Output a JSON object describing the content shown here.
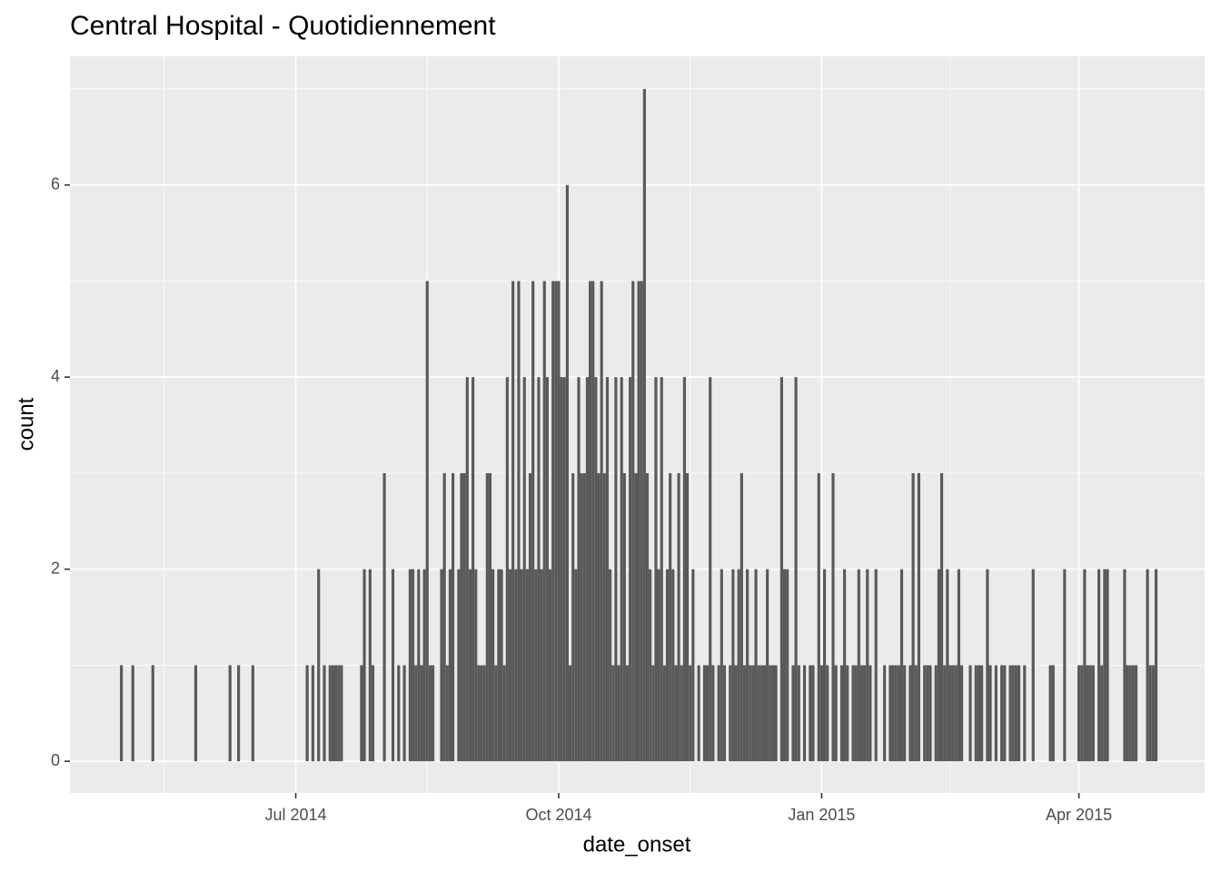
{
  "chart_data": {
    "type": "bar",
    "title": "Central Hospital - Quotidiennement",
    "x_label": "date_onset",
    "y_label": "count",
    "color": "#595959",
    "grid": true,
    "xlim": [
      "2014-04-13",
      "2015-05-15"
    ],
    "xticks": [
      {
        "value": "2014-07-01",
        "label": "Jul 2014"
      },
      {
        "value": "2014-10-01",
        "label": "Oct 2014"
      },
      {
        "value": "2015-01-01",
        "label": "Jan 2015"
      },
      {
        "value": "2015-04-01",
        "label": "Apr 2015"
      }
    ],
    "x_minor_ticks": [
      "2014-05-16",
      "2014-08-16",
      "2014-11-16",
      "2015-02-15"
    ],
    "ylim": [
      -0.33,
      7.34
    ],
    "yticks": [
      0,
      2,
      4,
      6
    ],
    "y_minor_ticks": [
      1,
      3,
      5,
      7
    ],
    "x": [
      "2014-05-01",
      "2014-05-05",
      "2014-05-12",
      "2014-05-27",
      "2014-06-08",
      "2014-06-11",
      "2014-06-16",
      "2014-07-05",
      "2014-07-07",
      "2014-07-09",
      "2014-07-11",
      "2014-07-13",
      "2014-07-14",
      "2014-07-15",
      "2014-07-16",
      "2014-07-17",
      "2014-07-24",
      "2014-07-25",
      "2014-07-27",
      "2014-07-28",
      "2014-08-01",
      "2014-08-04",
      "2014-08-06",
      "2014-08-08",
      "2014-08-10",
      "2014-08-11",
      "2014-08-12",
      "2014-08-13",
      "2014-08-14",
      "2014-08-15",
      "2014-08-16",
      "2014-08-17",
      "2014-08-18",
      "2014-08-21",
      "2014-08-22",
      "2014-08-23",
      "2014-08-24",
      "2014-08-25",
      "2014-08-27",
      "2014-08-28",
      "2014-08-29",
      "2014-08-30",
      "2014-08-31",
      "2014-09-01",
      "2014-09-02",
      "2014-09-03",
      "2014-09-04",
      "2014-09-05",
      "2014-09-06",
      "2014-09-07",
      "2014-09-08",
      "2014-09-09",
      "2014-09-10",
      "2014-09-11",
      "2014-09-12",
      "2014-09-13",
      "2014-09-14",
      "2014-09-15",
      "2014-09-16",
      "2014-09-17",
      "2014-09-18",
      "2014-09-19",
      "2014-09-20",
      "2014-09-21",
      "2014-09-22",
      "2014-09-23",
      "2014-09-24",
      "2014-09-25",
      "2014-09-26",
      "2014-09-27",
      "2014-09-28",
      "2014-09-29",
      "2014-09-30",
      "2014-10-01",
      "2014-10-02",
      "2014-10-03",
      "2014-10-04",
      "2014-10-05",
      "2014-10-06",
      "2014-10-07",
      "2014-10-08",
      "2014-10-09",
      "2014-10-10",
      "2014-10-11",
      "2014-10-12",
      "2014-10-13",
      "2014-10-14",
      "2014-10-15",
      "2014-10-16",
      "2014-10-17",
      "2014-10-18",
      "2014-10-19",
      "2014-10-20",
      "2014-10-21",
      "2014-10-22",
      "2014-10-23",
      "2014-10-24",
      "2014-10-25",
      "2014-10-26",
      "2014-10-27",
      "2014-10-28",
      "2014-10-29",
      "2014-10-30",
      "2014-10-31",
      "2014-11-01",
      "2014-11-02",
      "2014-11-03",
      "2014-11-04",
      "2014-11-05",
      "2014-11-06",
      "2014-11-07",
      "2014-11-08",
      "2014-11-09",
      "2014-11-10",
      "2014-11-11",
      "2014-11-12",
      "2014-11-13",
      "2014-11-14",
      "2014-11-15",
      "2014-11-16",
      "2014-11-17",
      "2014-11-18",
      "2014-11-19",
      "2014-11-20",
      "2014-11-21",
      "2014-11-22",
      "2014-11-23",
      "2014-11-24",
      "2014-11-25",
      "2014-11-26",
      "2014-11-27",
      "2014-11-28",
      "2014-11-29",
      "2014-11-30",
      "2014-12-01",
      "2014-12-02",
      "2014-12-03",
      "2014-12-04",
      "2014-12-05",
      "2014-12-06",
      "2014-12-07",
      "2014-12-08",
      "2014-12-09",
      "2014-12-10",
      "2014-12-11",
      "2014-12-12",
      "2014-12-13",
      "2014-12-14",
      "2014-12-15",
      "2014-12-16",
      "2014-12-17",
      "2014-12-18",
      "2014-12-19",
      "2014-12-20",
      "2014-12-21",
      "2014-12-22",
      "2014-12-23",
      "2014-12-24",
      "2014-12-25",
      "2014-12-26",
      "2014-12-27",
      "2014-12-28",
      "2014-12-29",
      "2014-12-30",
      "2014-12-31",
      "2015-01-01",
      "2015-01-02",
      "2015-01-03",
      "2015-01-04",
      "2015-01-05",
      "2015-01-06",
      "2015-01-07",
      "2015-01-08",
      "2015-01-09",
      "2015-01-10",
      "2015-01-11",
      "2015-01-12",
      "2015-01-13",
      "2015-01-14",
      "2015-01-15",
      "2015-01-16",
      "2015-01-17",
      "2015-01-18",
      "2015-01-19",
      "2015-01-20",
      "2015-01-21",
      "2015-01-22",
      "2015-01-23",
      "2015-01-24",
      "2015-01-25",
      "2015-01-26",
      "2015-01-27",
      "2015-01-28",
      "2015-01-29",
      "2015-01-30",
      "2015-01-31",
      "2015-02-01",
      "2015-02-02",
      "2015-02-03",
      "2015-02-04",
      "2015-02-05",
      "2015-02-06",
      "2015-02-07",
      "2015-02-08",
      "2015-02-09",
      "2015-02-10",
      "2015-02-11",
      "2015-02-12",
      "2015-02-13",
      "2015-02-14",
      "2015-02-15",
      "2015-02-16",
      "2015-02-17",
      "2015-02-18",
      "2015-02-19",
      "2015-02-20",
      "2015-02-21",
      "2015-02-22",
      "2015-02-23",
      "2015-02-24",
      "2015-02-25",
      "2015-02-26",
      "2015-02-27",
      "2015-02-28",
      "2015-03-01",
      "2015-03-02",
      "2015-03-03",
      "2015-03-04",
      "2015-03-05",
      "2015-03-06",
      "2015-03-07",
      "2015-03-08",
      "2015-03-09",
      "2015-03-10",
      "2015-03-11",
      "2015-03-12",
      "2015-03-13",
      "2015-03-14",
      "2015-03-15",
      "2015-03-16",
      "2015-03-17",
      "2015-03-18",
      "2015-03-19",
      "2015-03-20",
      "2015-03-21",
      "2015-03-22",
      "2015-03-23",
      "2015-03-24",
      "2015-03-25",
      "2015-03-26",
      "2015-03-27",
      "2015-03-28",
      "2015-03-29",
      "2015-03-30",
      "2015-03-31",
      "2015-04-01",
      "2015-04-02",
      "2015-04-03",
      "2015-04-04",
      "2015-04-05",
      "2015-04-06",
      "2015-04-07",
      "2015-04-08",
      "2015-04-09",
      "2015-04-10",
      "2015-04-11",
      "2015-04-12",
      "2015-04-13",
      "2015-04-14",
      "2015-04-15",
      "2015-04-16",
      "2015-04-17",
      "2015-04-18",
      "2015-04-19",
      "2015-04-20",
      "2015-04-21",
      "2015-04-22",
      "2015-04-23",
      "2015-04-24",
      "2015-04-25",
      "2015-04-26",
      "2015-04-27",
      "2015-04-28"
    ],
    "values": [
      1,
      1,
      1,
      1,
      1,
      1,
      1,
      1,
      1,
      2,
      1,
      1,
      1,
      1,
      1,
      1,
      1,
      2,
      2,
      1,
      3,
      2,
      1,
      1,
      2,
      2,
      1,
      2,
      1,
      2,
      5,
      1,
      1,
      2,
      3,
      1,
      2,
      3,
      2,
      3,
      3,
      4,
      2,
      4,
      2,
      1,
      1,
      1,
      3,
      3,
      2,
      1,
      2,
      2,
      1,
      4,
      2,
      5,
      2,
      5,
      2,
      4,
      2,
      3,
      5,
      2,
      4,
      2,
      5,
      4,
      2,
      5,
      5,
      5,
      4,
      4,
      6,
      1,
      3,
      2,
      4,
      3,
      3,
      4,
      5,
      5,
      4,
      3,
      5,
      3,
      4,
      2,
      1,
      4,
      1,
      4,
      3,
      1,
      4,
      5,
      3,
      5,
      5,
      7,
      3,
      2,
      1,
      4,
      2,
      4,
      1,
      2,
      3,
      2,
      1,
      3,
      1,
      4,
      3,
      1,
      2,
      0,
      1,
      0,
      1,
      1,
      4,
      1,
      0,
      1,
      2,
      1,
      0,
      1,
      2,
      1,
      2,
      3,
      1,
      2,
      1,
      1,
      2,
      1,
      1,
      1,
      2,
      1,
      1,
      1,
      0,
      4,
      2,
      2,
      0,
      1,
      4,
      1,
      0,
      1,
      0,
      1,
      1,
      0,
      3,
      1,
      2,
      1,
      0,
      3,
      1,
      0,
      1,
      2,
      1,
      0,
      1,
      1,
      2,
      1,
      1,
      2,
      1,
      0,
      2,
      0,
      0,
      1,
      0,
      1,
      1,
      1,
      1,
      2,
      1,
      0,
      1,
      3,
      1,
      3,
      0,
      1,
      1,
      1,
      0,
      1,
      2,
      3,
      1,
      2,
      1,
      1,
      1,
      2,
      1,
      0,
      0,
      1,
      0,
      1,
      1,
      1,
      0,
      2,
      1,
      0,
      1,
      0,
      1,
      1,
      0,
      1,
      1,
      1,
      1,
      0,
      1,
      0,
      0,
      2,
      0,
      0,
      0,
      0,
      0,
      1,
      1,
      0,
      0,
      0,
      2,
      0,
      0,
      0,
      0,
      1,
      1,
      2,
      1,
      1,
      1,
      0,
      2,
      1,
      2,
      2,
      0,
      0,
      0,
      0,
      0,
      2,
      1,
      1,
      1,
      1,
      0,
      0,
      0,
      2,
      1,
      1,
      2
    ]
  }
}
